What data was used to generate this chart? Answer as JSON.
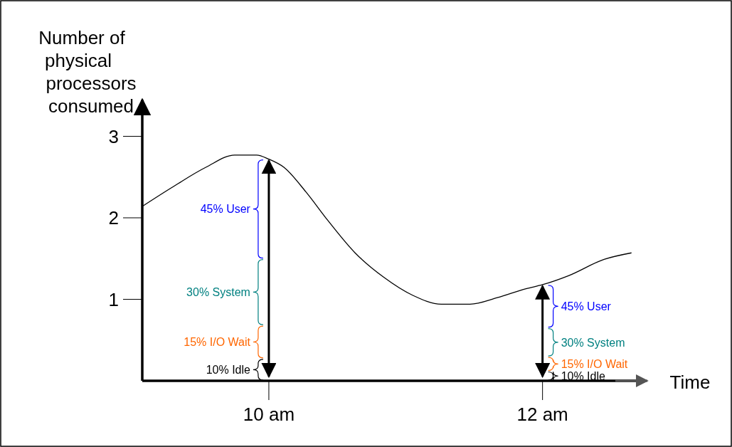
{
  "chart_data": {
    "type": "line",
    "ylabel": "Number of physical processors consumed",
    "xlabel": "Time",
    "xlim": [
      9.075,
      12.74
    ],
    "ylim": [
      0,
      3.45
    ],
    "xticks": [
      {
        "value": 10,
        "label": "10 am"
      },
      {
        "value": 12,
        "label": "12 am"
      }
    ],
    "yticks": [
      1,
      2,
      3
    ],
    "series": [
      {
        "color": "#000000",
        "x": [
          9.075,
          9.28,
          9.54,
          9.75,
          9.91,
          10,
          10.11,
          10.27,
          10.43,
          10.63,
          10.84,
          11.05,
          11.26,
          11.47,
          11.67,
          11.88,
          12,
          12.19,
          12.45,
          12.65
        ],
        "values": [
          2.14,
          2.36,
          2.62,
          2.77,
          2.77,
          2.72,
          2.62,
          2.32,
          1.97,
          1.57,
          1.27,
          1.05,
          0.94,
          0.94,
          1.02,
          1.13,
          1.18,
          1.29,
          1.49,
          1.57
        ]
      }
    ],
    "marker": "none",
    "line_style": "solid",
    "annotations": [
      "45% User",
      "30% System",
      "15% I/O Wait",
      "10% Idle",
      "45% User",
      "30% System",
      "15% I/O Wait",
      "10% Idle"
    ]
  }
}
